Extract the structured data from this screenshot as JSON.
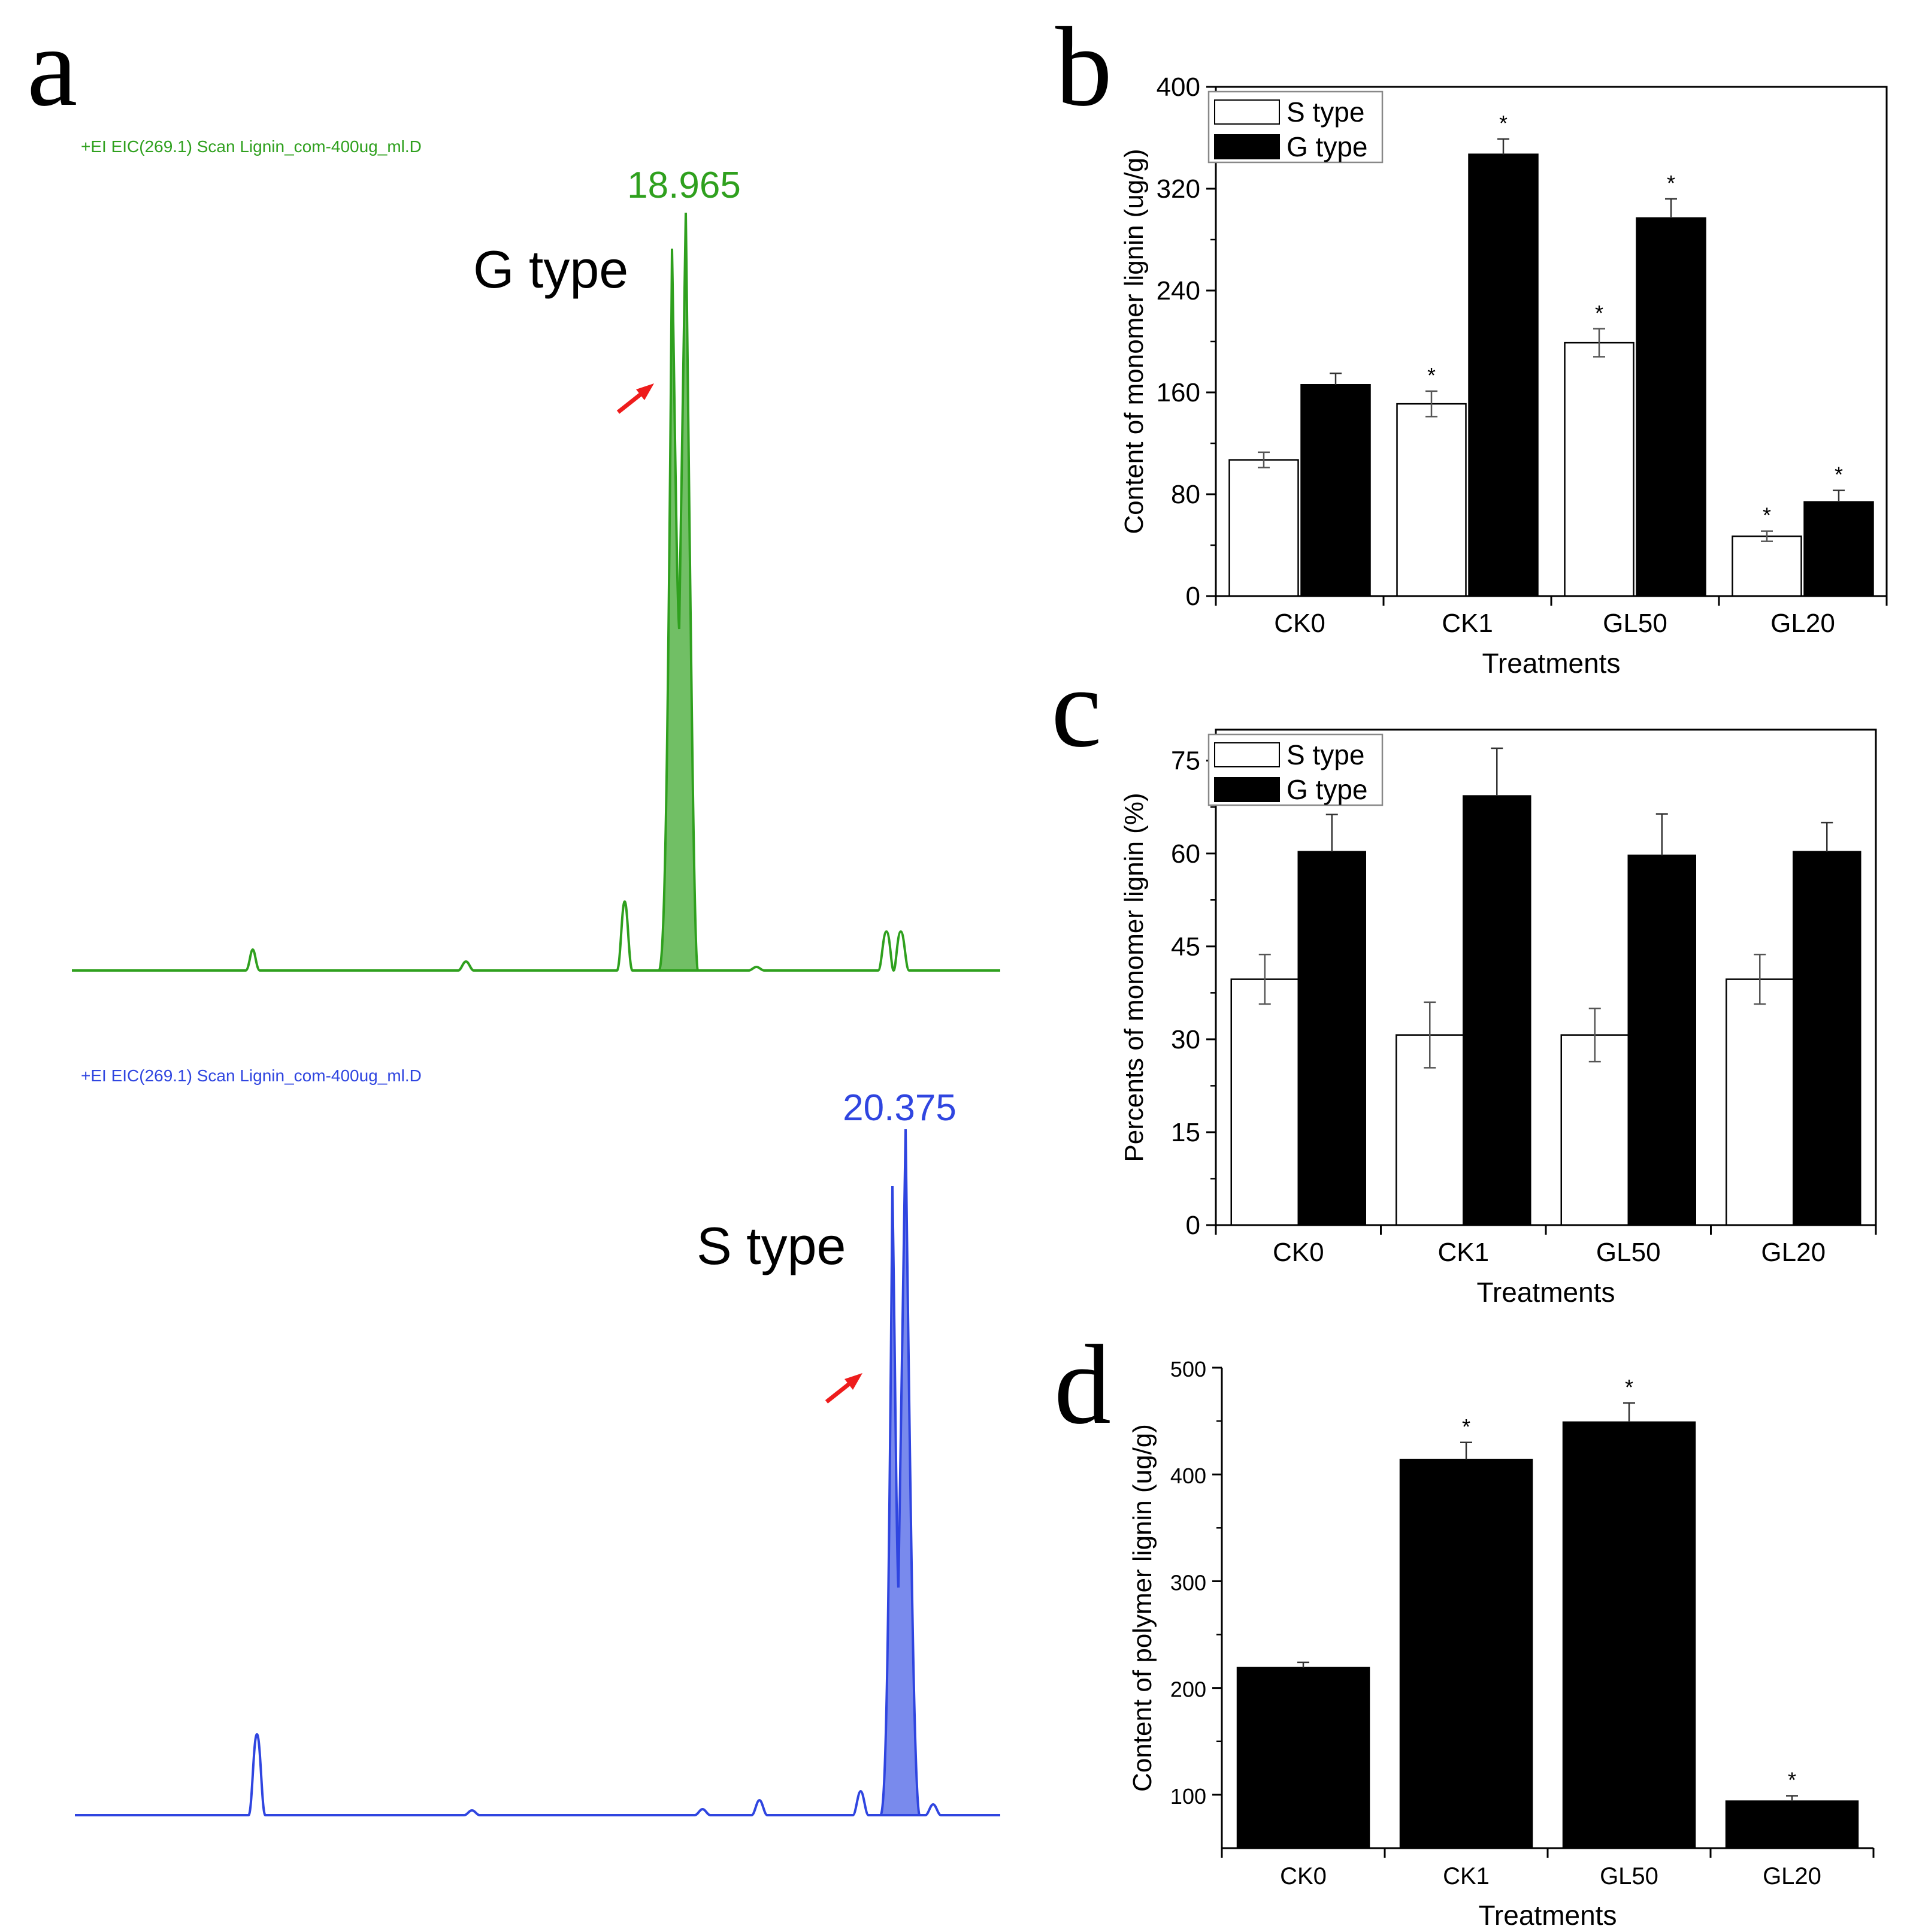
{
  "panels": {
    "a": "a",
    "b": "b",
    "c": "c",
    "d": "d"
  },
  "chromatograms": [
    {
      "header": "+EI EIC(269.1) Scan Lignin_com-400ug_ml.D",
      "peak_label": "18.965",
      "type_label": "G type",
      "color": "#2fa01e",
      "fill": "#58b44a"
    },
    {
      "header": "+EI EIC(269.1) Scan Lignin_com-400ug_ml.D",
      "peak_label": "20.375",
      "type_label": "S type",
      "color": "#2f45e0",
      "fill": "#6275ea"
    }
  ],
  "arrow_color": "#ee1c1c",
  "chart_data": [
    {
      "panel": "b",
      "type": "bar",
      "categories": [
        "CK0",
        "CK1",
        "GL50",
        "GL20"
      ],
      "series": [
        {
          "name": "S type",
          "values": [
            107,
            151,
            199,
            47
          ],
          "errors": [
            6,
            10,
            11,
            4
          ],
          "significant": [
            false,
            true,
            true,
            true
          ],
          "fill": "#ffffff"
        },
        {
          "name": "G type",
          "values": [
            166,
            347,
            297,
            74
          ],
          "errors": [
            9,
            12,
            15,
            9
          ],
          "significant": [
            false,
            true,
            true,
            true
          ],
          "fill": "#000000"
        }
      ],
      "xlabel": "Treatments",
      "ylabel": "Content of monomer lignin (ug/g)",
      "ylim": [
        0,
        400
      ],
      "yticks": [
        0,
        80,
        160,
        240,
        320,
        400
      ],
      "legend": "top-left",
      "grid": false
    },
    {
      "panel": "c",
      "type": "bar",
      "categories": [
        "CK0",
        "CK1",
        "GL50",
        "GL20"
      ],
      "series": [
        {
          "name": "S type",
          "values": [
            39.7,
            30.7,
            30.7,
            39.7
          ],
          "errors": [
            4.0,
            5.3,
            4.3,
            4.0
          ],
          "fill": "#ffffff"
        },
        {
          "name": "G type",
          "values": [
            60.3,
            69.3,
            59.7,
            60.3
          ],
          "errors": [
            6.0,
            7.7,
            6.7,
            4.7
          ],
          "fill": "#000000"
        }
      ],
      "xlabel": "Treatments",
      "ylabel": "Percents of monomer lignin (%)",
      "ylim": [
        0,
        80
      ],
      "yticks": [
        0,
        15,
        30,
        45,
        60,
        75
      ],
      "legend": "top-left",
      "grid": false
    },
    {
      "panel": "d",
      "type": "bar",
      "categories": [
        "CK0",
        "CK1",
        "GL50",
        "GL20"
      ],
      "series": [
        {
          "name": "",
          "values": [
            219,
            414,
            449,
            94
          ],
          "errors": [
            5,
            16,
            18,
            5
          ],
          "significant": [
            false,
            true,
            true,
            true
          ],
          "fill": "#000000"
        }
      ],
      "xlabel": "Treatments",
      "ylabel": "Content of polymer lignin (ug/g)",
      "ylim": [
        50,
        500
      ],
      "yticks": [
        100,
        200,
        300,
        400,
        500
      ],
      "grid": false
    }
  ]
}
